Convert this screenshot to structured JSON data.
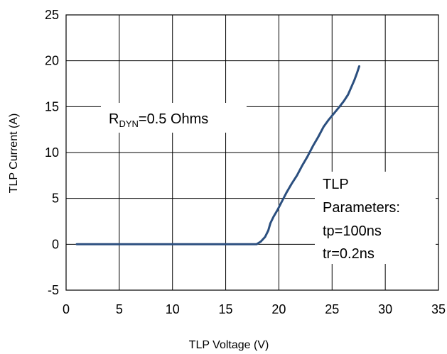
{
  "chart_data": {
    "type": "line",
    "xlabel": "TLP Voltage (V)",
    "ylabel": "TLP Current (A)",
    "xlim": [
      0,
      35
    ],
    "ylim": [
      -5,
      25
    ],
    "xticks": [
      0,
      5,
      10,
      15,
      20,
      25,
      30,
      35
    ],
    "yticks": [
      -5,
      0,
      5,
      10,
      15,
      20,
      25
    ],
    "grid": true,
    "series": [
      {
        "color": "#2b4f7f",
        "x": [
          1,
          5,
          10,
          15,
          17.9,
          18.3,
          18.7,
          19.0,
          19.2,
          19.5,
          19.9,
          20.3,
          20.7,
          21.2,
          21.7,
          22.2,
          22.7,
          23.2,
          23.7,
          24.2,
          24.7,
          25.2,
          25.7,
          26.1,
          26.5,
          26.8,
          27.1,
          27.35,
          27.55
        ],
        "y": [
          0,
          0,
          0,
          0,
          0,
          0.3,
          0.8,
          1.5,
          2.3,
          3.0,
          3.8,
          4.7,
          5.6,
          6.6,
          7.5,
          8.6,
          9.6,
          10.7,
          11.7,
          12.8,
          13.6,
          14.3,
          15.0,
          15.6,
          16.3,
          17.1,
          17.9,
          18.7,
          19.4
        ]
      }
    ],
    "annotations": {
      "rdyn": {
        "prefix": "R",
        "subscript": "DYN",
        "text": "=0.5  Ohms"
      },
      "tlp_params": [
        "TLP",
        "Parameters:",
        "tp=100ns",
        "tr=0.2ns"
      ]
    }
  }
}
